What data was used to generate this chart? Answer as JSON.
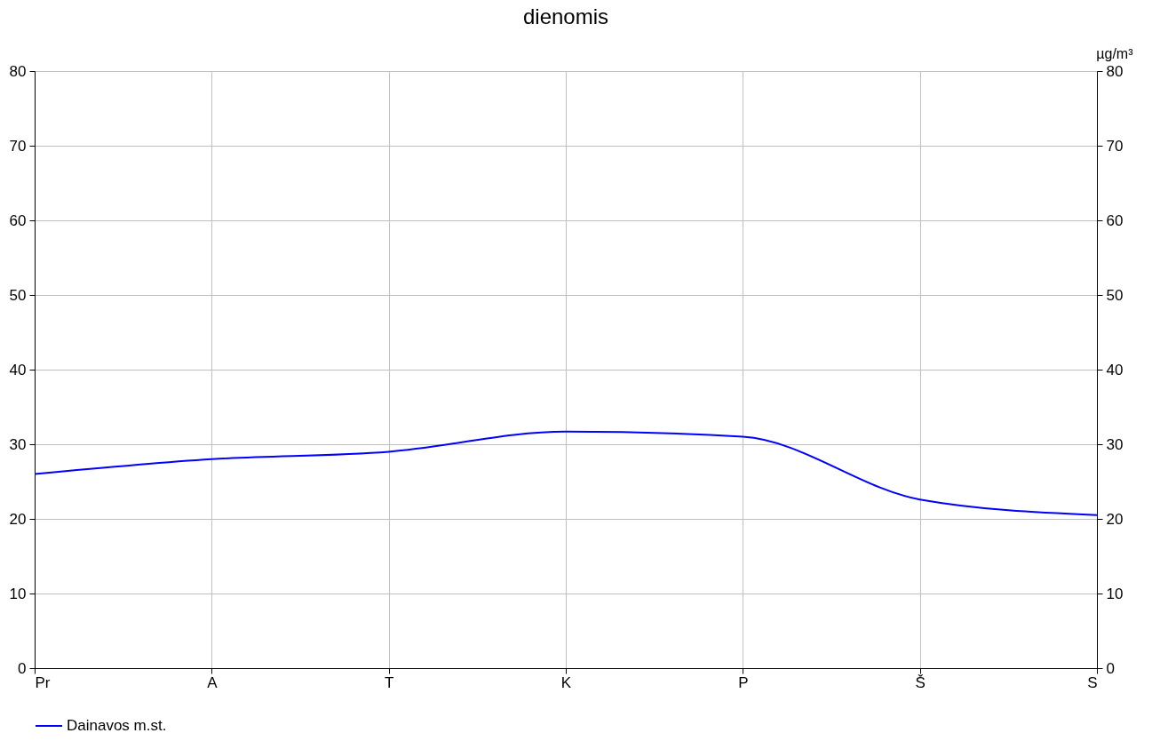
{
  "chart_data": {
    "type": "line",
    "title": "dienomis",
    "y2label": "µg/m³",
    "categories": [
      "Pr",
      "A",
      "T",
      "K",
      "P",
      "Š",
      "S"
    ],
    "series": [
      {
        "name": "Dainavos m.st.",
        "color": "#0000ff",
        "values": [
          26,
          28,
          29,
          31.7,
          31,
          22.6,
          20.5
        ]
      }
    ],
    "ylim": [
      0,
      80
    ],
    "yticks": [
      0,
      10,
      20,
      30,
      40,
      50,
      60,
      70,
      80
    ],
    "y2lim": [
      0,
      80
    ],
    "y2ticks": [
      0,
      10,
      20,
      30,
      40,
      50,
      60,
      70,
      80
    ],
    "grid": true,
    "legend": "bottom",
    "marker": "none",
    "line_style": "solid"
  }
}
